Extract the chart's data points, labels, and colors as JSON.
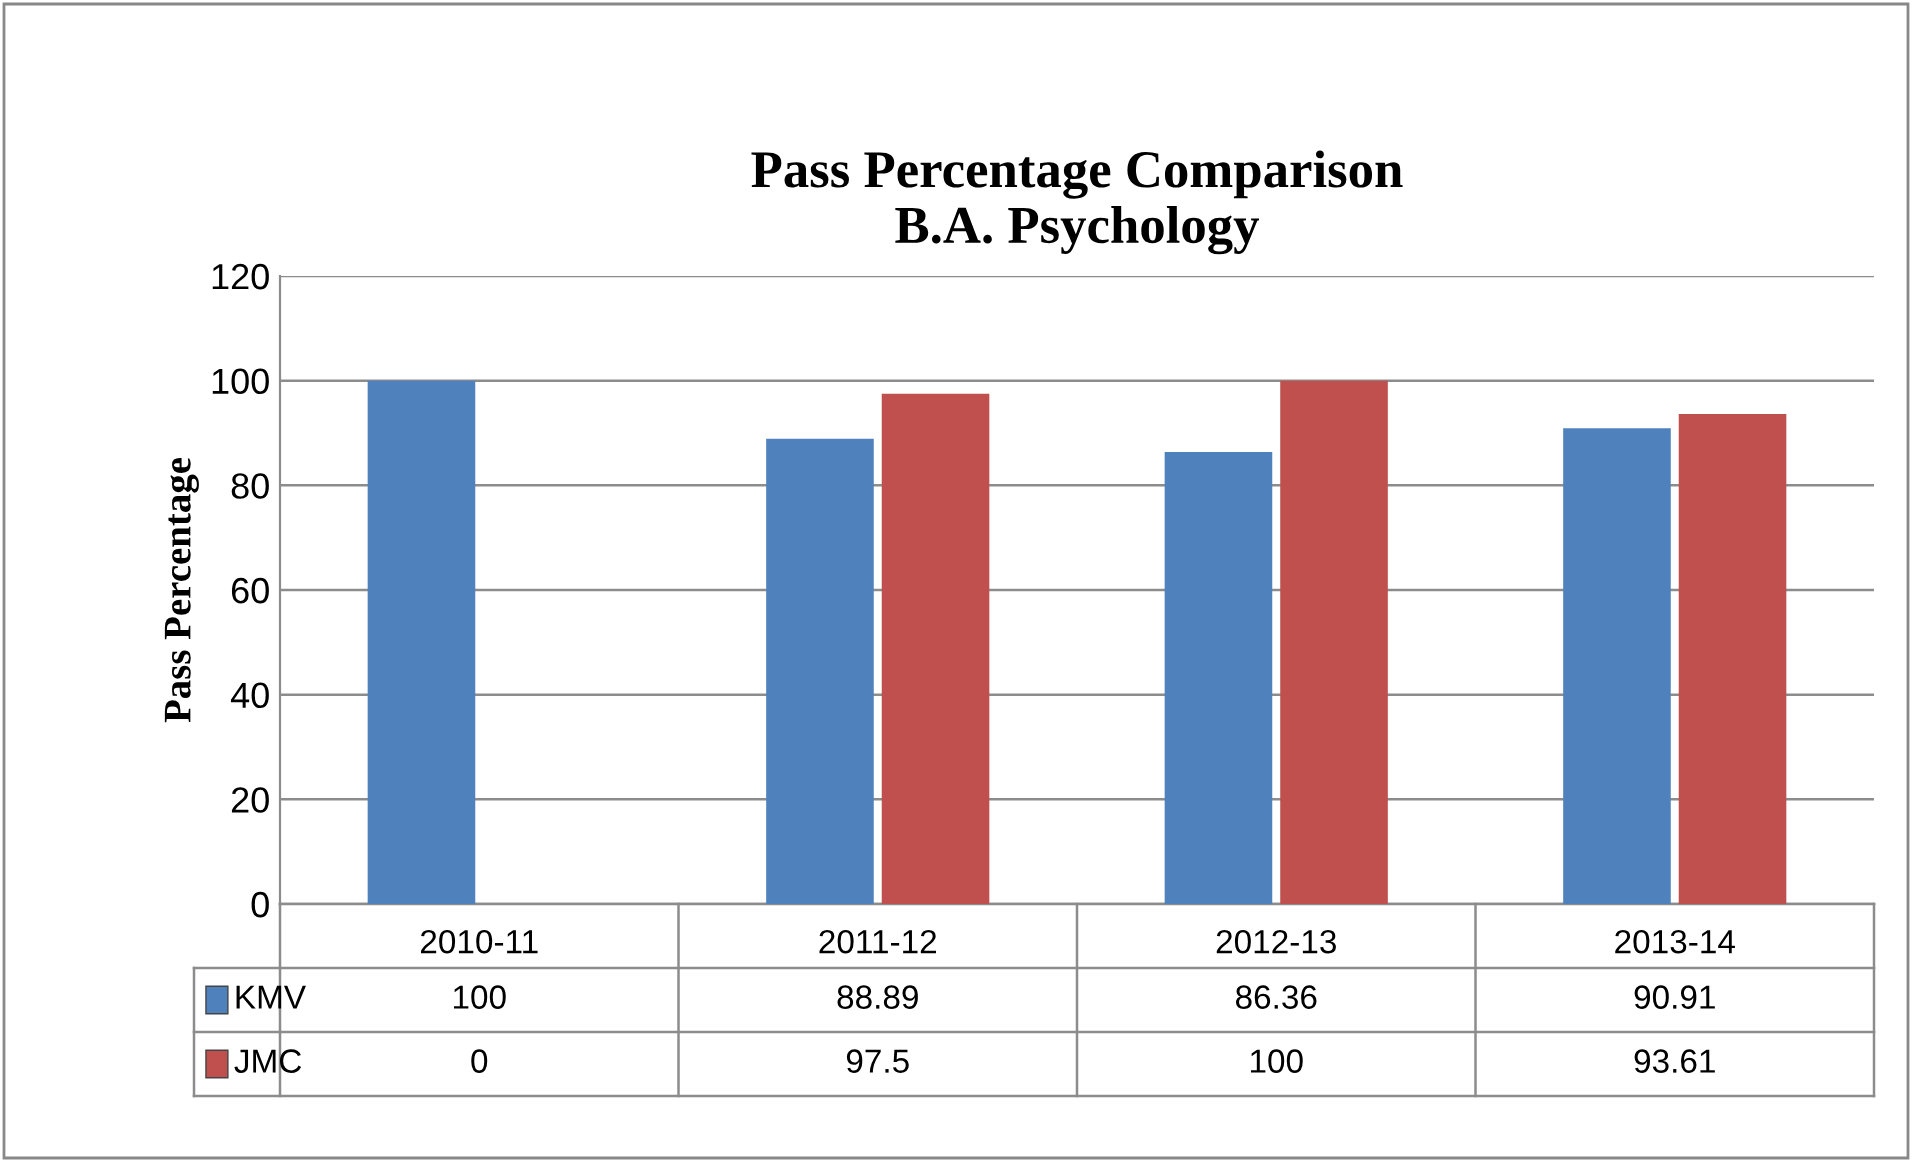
{
  "chart_data": {
    "type": "bar",
    "title": "Pass Percentage Comparison\nB.A. Psychology",
    "ylabel": "Pass Percentage",
    "categories": [
      "2010-11",
      "2011-12",
      "2012-13",
      "2013-14"
    ],
    "series": [
      {
        "name": "KMV",
        "color": "#4f81bd",
        "values": [
          100,
          88.89,
          86.36,
          90.91
        ]
      },
      {
        "name": "JMC",
        "color": "#c0504d",
        "values": [
          0,
          97.5,
          100,
          93.61
        ]
      }
    ],
    "ylim": [
      0,
      120
    ],
    "yticks": [
      0,
      20,
      40,
      60,
      80,
      100,
      120
    ],
    "grid": "y",
    "legend": "bottom",
    "data_labels": true
  }
}
